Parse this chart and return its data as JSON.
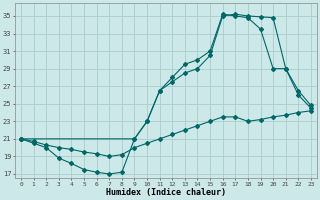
{
  "xlabel": "Humidex (Indice chaleur)",
  "bg_color": "#cde8e8",
  "grid_color": "#aacccc",
  "line_color": "#006666",
  "xlim": [
    -0.5,
    23.5
  ],
  "ylim": [
    16.5,
    36.5
  ],
  "xticks": [
    0,
    1,
    2,
    3,
    4,
    5,
    6,
    7,
    8,
    9,
    10,
    11,
    12,
    13,
    14,
    15,
    16,
    17,
    18,
    19,
    20,
    21,
    22,
    23
  ],
  "yticks": [
    17,
    19,
    21,
    23,
    25,
    27,
    29,
    31,
    33,
    35
  ],
  "line1_x": [
    0,
    1,
    2,
    3,
    4,
    5,
    6,
    7,
    8,
    9,
    10,
    11,
    12,
    13,
    14,
    15,
    16,
    17,
    18,
    19,
    20,
    21,
    22,
    23
  ],
  "line1_y": [
    21,
    20.5,
    20,
    18.8,
    18.2,
    17.5,
    17.2,
    17.0,
    17.2,
    21,
    23,
    26.5,
    27.5,
    28.5,
    29,
    30.5,
    35,
    35.2,
    35,
    34.9,
    34.8,
    29,
    26,
    24.5
  ],
  "line2_x": [
    0,
    1,
    2,
    3,
    4,
    5,
    6,
    7,
    8,
    9,
    10,
    11,
    12,
    13,
    14,
    15,
    16,
    17,
    18,
    19,
    20,
    21,
    22,
    23
  ],
  "line2_y": [
    21,
    20.7,
    20.3,
    20.0,
    19.8,
    19.5,
    19.3,
    19.0,
    19.2,
    20.0,
    20.5,
    21.0,
    21.5,
    22.0,
    22.5,
    23.0,
    23.5,
    23.5,
    23.0,
    23.2,
    23.5,
    23.7,
    24.0,
    24.2
  ],
  "line3_x": [
    0,
    9,
    10,
    11,
    12,
    13,
    14,
    15,
    16,
    17,
    18,
    19,
    20,
    21,
    22,
    23
  ],
  "line3_y": [
    21,
    21,
    23,
    26.5,
    28.0,
    29.5,
    30.0,
    31.0,
    35.2,
    35.0,
    34.8,
    33.5,
    29.0,
    29.0,
    26.5,
    24.8
  ]
}
